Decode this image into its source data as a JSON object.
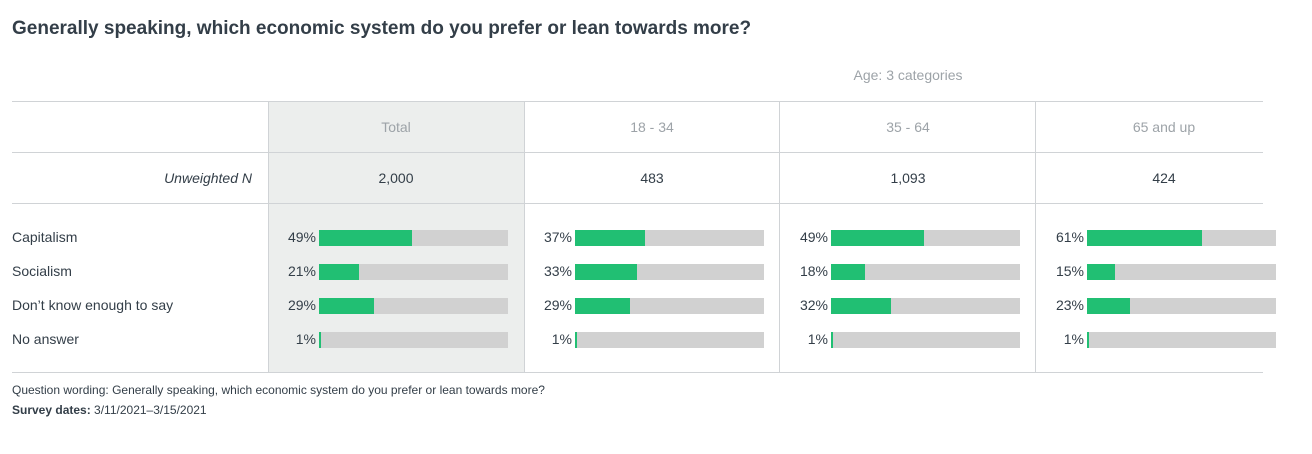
{
  "title": "Generally speaking, which economic system do you prefer or lean towards more?",
  "group_label": "Age: 3 categories",
  "unweighted_label": "Unweighted N",
  "footer": {
    "wording_label": "Question wording:",
    "wording_text": "Generally speaking, which economic system do you prefer or lean towards more?",
    "dates_label": "Survey dates:",
    "dates_text": "3/11/2021–3/15/2021"
  },
  "colors": {
    "bar_fill": "#21bf73",
    "bar_track": "#d1d1d1",
    "total_column_bg": "#eceeed"
  },
  "chart_data": {
    "type": "bar",
    "orientation": "horizontal",
    "columns": [
      {
        "label": "Total",
        "unweighted_n": "2,000"
      },
      {
        "label": "18 - 34",
        "unweighted_n": "483"
      },
      {
        "label": "35 - 64",
        "unweighted_n": "1,093"
      },
      {
        "label": "65 and up",
        "unweighted_n": "424"
      }
    ],
    "categories": [
      "Capitalism",
      "Socialism",
      "Don’t know enough to say",
      "No answer"
    ],
    "series": [
      {
        "name": "Total",
        "values": [
          49,
          21,
          29,
          1
        ]
      },
      {
        "name": "18 - 34",
        "values": [
          37,
          33,
          29,
          1
        ]
      },
      {
        "name": "35 - 64",
        "values": [
          49,
          18,
          32,
          1
        ]
      },
      {
        "name": "65 and up",
        "values": [
          61,
          15,
          23,
          1
        ]
      }
    ],
    "value_suffix": "%",
    "xlim": [
      0,
      100
    ]
  }
}
